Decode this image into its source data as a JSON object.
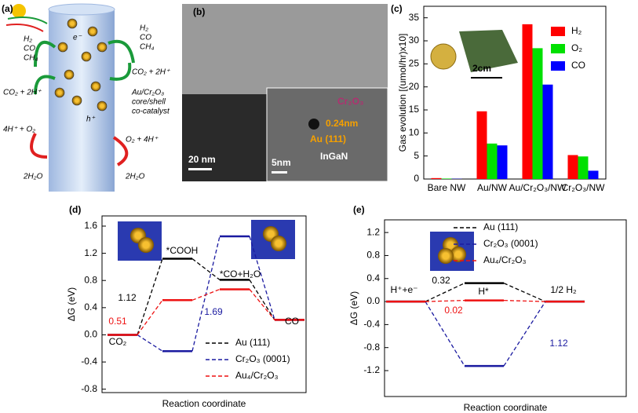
{
  "figure_a": {
    "panel_label": "(a)",
    "labels": [
      "H₂",
      "CO",
      "CH₄",
      "H₂",
      "CO",
      "CH₄",
      "CO₂ + 2H⁺",
      "CO₂ + 2H⁺",
      "e⁻",
      "Au/Cr₂O₃",
      "core/shell",
      "co-catalyst",
      "h⁺",
      "4H⁺ + O₂",
      "O₂ + 4H⁺",
      "2H₂O",
      "2H₂O"
    ]
  },
  "figure_b": {
    "panel_label": "(b)",
    "labels": [
      "20 nm",
      "5nm",
      "InGaN",
      "Cr₂O₃",
      "0.24nm",
      "Au (111)"
    ]
  },
  "chart_data": [
    {
      "type": "bar",
      "panel_label": "(c)",
      "ylabel": "Gas evolution [(umol/hr)x10]",
      "categories": [
        "Bare NW",
        "Au/NW",
        "Au/Cr₂O₃/NW",
        "Cr₂O₃/NW"
      ],
      "series": [
        {
          "name": "H₂",
          "color": "#ff0000",
          "values": [
            0.2,
            14.7,
            33.6,
            5.2
          ]
        },
        {
          "name": "O₂",
          "color": "#00e000",
          "values": [
            0.1,
            7.7,
            28.4,
            4.9
          ]
        },
        {
          "name": "CO",
          "color": "#0000ff",
          "values": [
            0.05,
            7.3,
            20.5,
            1.8
          ]
        }
      ],
      "ylim": [
        0,
        37.5
      ],
      "yticks": [
        0,
        5,
        10,
        15,
        20,
        25,
        30,
        35
      ],
      "legend": "upper right",
      "inset_label": "2cm"
    },
    {
      "type": "energy_diagram",
      "panel_label": "(d)",
      "xlabel": "Reaction coordinate",
      "ylabel": "ΔG (eV)",
      "categories": [
        "CO₂",
        "*COOH",
        "*CO+H₂O",
        "CO"
      ],
      "series": [
        {
          "name": "Au (111)",
          "color": "#000000",
          "values": [
            0,
            1.12,
            0.81,
            0.22
          ]
        },
        {
          "name": "Cr₂O₃ (0001)",
          "color": "#1a1aa0",
          "values": [
            0,
            -0.24,
            1.45,
            0.22
          ]
        },
        {
          "name": "Au₄/Cr₂O₃",
          "color": "#ee1111",
          "values": [
            0,
            0.51,
            0.67,
            0.22
          ]
        }
      ],
      "annotations": [
        {
          "text": "1.12",
          "color": "#000000"
        },
        {
          "text": "0.51",
          "color": "#ee1111"
        },
        {
          "text": "1.69",
          "color": "#1a1aa0"
        }
      ],
      "ylim": [
        -0.85,
        1.75
      ],
      "yticks": [
        {
          "value": -0.8,
          "label": "-0.8"
        },
        {
          "value": -0.4,
          "label": "-0.4"
        },
        {
          "value": 0,
          "label": "0.0"
        },
        0.4,
        0.8,
        1.2,
        1.6
      ],
      "legend": "lower right"
    },
    {
      "type": "energy_diagram",
      "panel_label": "(e)",
      "xlabel": "Reaction coordinate",
      "ylabel": "ΔG (eV)",
      "categories": [
        "H⁺+e⁻",
        "H*",
        "1/2 H₂"
      ],
      "series": [
        {
          "name": "Au (111)",
          "color": "#000000",
          "values": [
            0,
            0.32,
            0
          ]
        },
        {
          "name": "Cr₂O₃ (0001)",
          "color": "#1a1aa0",
          "values": [
            0,
            -1.12,
            0
          ]
        },
        {
          "name": "Au₄/Cr₂O₃",
          "color": "#ee1111",
          "values": [
            0,
            0.02,
            0
          ]
        }
      ],
      "annotations": [
        {
          "text": "0.32",
          "color": "#000000"
        },
        {
          "text": "0.02",
          "color": "#ee1111"
        },
        {
          "text": "1.12",
          "color": "#1a1aa0"
        }
      ],
      "ylim": [
        -1.65,
        1.42
      ],
      "yticks": [
        -1.2,
        -0.8,
        -0.4,
        {
          "value": 0,
          "label": "0.0"
        },
        0.4,
        0.8,
        1.2
      ],
      "legend": "upper center"
    }
  ]
}
